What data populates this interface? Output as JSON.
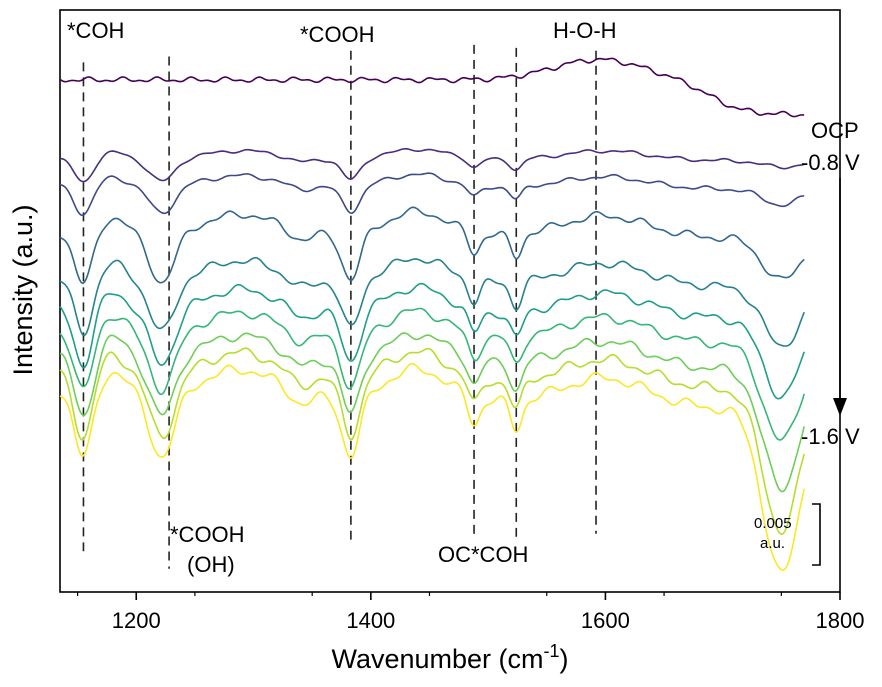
{
  "chart_data": {
    "type": "line",
    "title": "",
    "xlabel": "Wavenumber (cm",
    "xlabel_sup": "-1",
    "xlabel_close": ")",
    "ylabel": "Intensity (a.u.)",
    "xlim": [
      1135,
      1800
    ],
    "xticks": [
      1200,
      1400,
      1600,
      1800
    ],
    "y_offset_range": [
      0,
      1
    ],
    "series_start_label": "OCP",
    "series_mid_label": "-0.8 V",
    "series_end_label": "-1.6 V",
    "scale_bar": {
      "value": "0.005",
      "unit": "a.u."
    },
    "reference_lines": [
      {
        "x": 1155,
        "label": "*COH",
        "label_pos": "top"
      },
      {
        "x": 1228,
        "label": "",
        "label_pos": "none"
      },
      {
        "x": 1383,
        "label": "*COOH",
        "label_pos": "top"
      },
      {
        "x": 1488,
        "label": "",
        "label_pos": "none"
      },
      {
        "x": 1524,
        "label": "OC*COH",
        "label_pos": "bottom"
      },
      {
        "x": 1592,
        "label": "H-O-H",
        "label_pos": "top"
      }
    ],
    "bottom_label_left": [
      "*COOH",
      "(OH)"
    ],
    "series": [
      {
        "name": "OCP",
        "color": "#440154",
        "amp": 0.15,
        "offset": 0.88
      },
      {
        "name": "-0.8 V",
        "color": "#472f7d",
        "amp": 0.45,
        "offset": 0.745
      },
      {
        "name": "",
        "color": "#3e4a89",
        "amp": 0.55,
        "offset": 0.7
      },
      {
        "name": "",
        "color": "#31688e",
        "amp": 1.0,
        "offset": 0.62
      },
      {
        "name": "",
        "color": "#26828e",
        "amp": 1.05,
        "offset": 0.54
      },
      {
        "name": "",
        "color": "#1f9e89",
        "amp": 1.1,
        "offset": 0.49
      },
      {
        "name": "",
        "color": "#35b779",
        "amp": 1.15,
        "offset": 0.45
      },
      {
        "name": "",
        "color": "#6ece58",
        "amp": 1.2,
        "offset": 0.41
      },
      {
        "name": "",
        "color": "#b5de2b",
        "amp": 1.25,
        "offset": 0.38
      },
      {
        "name": "-1.6 V",
        "color": "#fde725",
        "amp": 1.3,
        "offset": 0.35
      }
    ]
  }
}
